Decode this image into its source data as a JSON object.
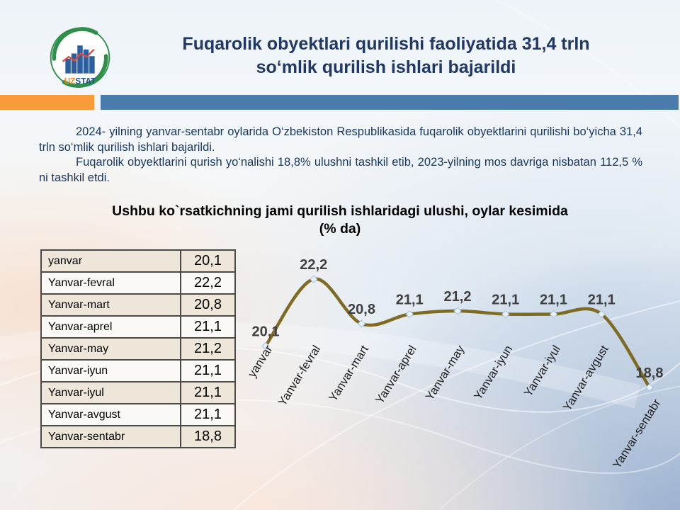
{
  "slide": {
    "title_line1": "Fuqarolik obyektlari qurilishi faoliyatida 31,4 trln",
    "title_line2": "so‘mlik qurilish ishlari bajarildi",
    "logo": {
      "uz": "UZ",
      "stat": "STAT"
    }
  },
  "intro": {
    "p1": "2024- yilning yanvar-sentabr oylarida O‘zbekiston Respublikasida fuqarolik obyektlarini qurilishi bo‘yicha 31,4 trln so‘mlik qurilish ishlari bajarildi.",
    "p2": "Fuqarolik obyektlarini qurish yo‘nalishi 18,8% ulushni tashkil etib, 2023-yilning mos davriga nisbatan 112,5 % ni tashkil etdi."
  },
  "chart_heading": {
    "line1": "Ushbu ko`rsatkichning jami qurilish ishlaridagi ulushi, oylar kesimida",
    "line2": "(% da)"
  },
  "table": {
    "rows": [
      {
        "label": "yanvar",
        "value": "20,1"
      },
      {
        "label": "Yanvar-fevral",
        "value": "22,2"
      },
      {
        "label": "Yanvar-mart",
        "value": "20,8"
      },
      {
        "label": "Yanvar-aprel",
        "value": "21,1"
      },
      {
        "label": "Yanvar-may",
        "value": "21,2"
      },
      {
        "label": "Yanvar-iyun",
        "value": "21,1"
      },
      {
        "label": "Yanvar-iyul",
        "value": "21,1"
      },
      {
        "label": "Yanvar-avgust",
        "value": "21,1"
      },
      {
        "label": "Yanvar-sentabr",
        "value": "18,8"
      }
    ]
  },
  "chart_data": {
    "type": "line",
    "categories": [
      "yanvar",
      "Yanvar-fevral",
      "Yanvar-mart",
      "Yanvar-aprel",
      "Yanvar-may",
      "Yanvar-iyun",
      "Yanvar-iyul",
      "Yanvar-avgust",
      "Yanvar-sentabr"
    ],
    "values": [
      20.1,
      22.2,
      20.8,
      21.1,
      21.2,
      21.1,
      21.1,
      21.1,
      18.8
    ],
    "labels": [
      "20,1",
      "22,2",
      "20,8",
      "21,1",
      "21,2",
      "21,1",
      "21,1",
      "21,1",
      "18,8"
    ],
    "title": "Ushbu ko`rsatkichning jami qurilish ishlaridagi ulushi, oylar kesimida (% da)",
    "xlabel": "",
    "ylabel": "",
    "ylim": [
      18.8,
      22.2
    ],
    "grid": false,
    "legend": "none",
    "smooth": true,
    "marker": "diamond",
    "line_color": "#7E6B21",
    "marker_fill": "#E8F1F8",
    "marker_stroke": "#A7C4DE",
    "data_label_color": "#3F3F3F"
  },
  "colors": {
    "title_navy": "#1F3864",
    "body_navy": "#17365D",
    "accent_orange": "#F89B3B",
    "accent_blue": "#4A7CAB",
    "table_beige": "#EDE6D9",
    "table_white": "#FBF9F6",
    "line_olive": "#7E6B21"
  }
}
